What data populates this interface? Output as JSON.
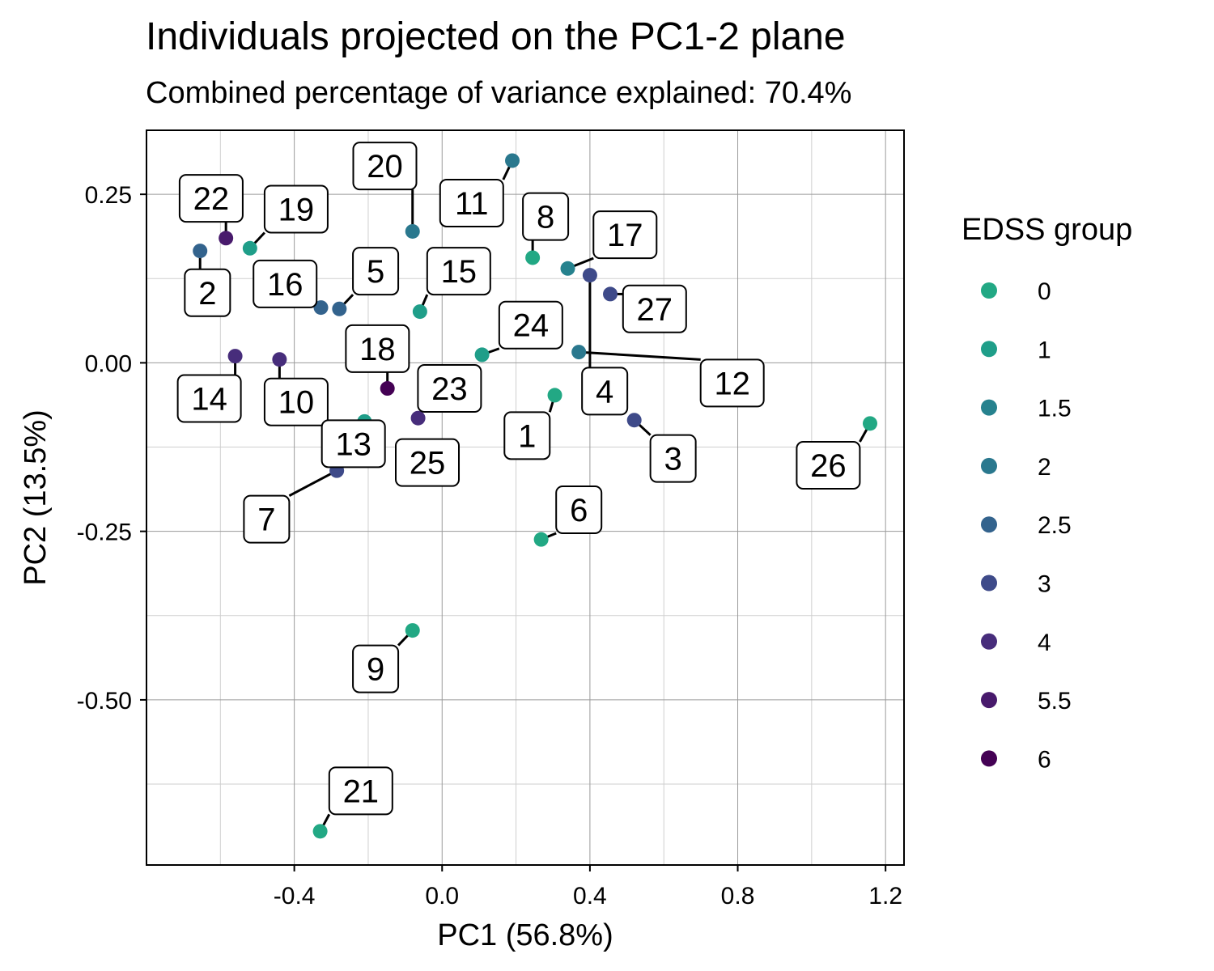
{
  "chart_data": {
    "type": "scatter",
    "title": "Individuals projected on the PC1-2 plane",
    "subtitle": "Combined percentage of variance explained: 70.4%",
    "xlabel": "PC1 (56.8%)",
    "ylabel": "PC2 (13.5%)",
    "xlim": [
      -0.8,
      1.25
    ],
    "ylim": [
      -0.745,
      0.345
    ],
    "xticks": [
      -0.4,
      0.0,
      0.4,
      0.8,
      1.2
    ],
    "xtick_labels": [
      "-0.4",
      "0.0",
      "0.4",
      "0.8",
      "1.2"
    ],
    "yticks": [
      -0.5,
      -0.25,
      0.0,
      0.25
    ],
    "ytick_labels": [
      "-0.50",
      "-0.25",
      "0.00",
      "0.25"
    ],
    "grid": true,
    "legend": {
      "title": "EDSS group",
      "placement": "right",
      "entries": [
        {
          "label": "0",
          "color": "#22a884"
        },
        {
          "label": "1",
          "color": "#1f9e89"
        },
        {
          "label": "1.5",
          "color": "#26828e"
        },
        {
          "label": "2",
          "color": "#2a788e"
        },
        {
          "label": "2.5",
          "color": "#33638d"
        },
        {
          "label": "3",
          "color": "#3e4a89"
        },
        {
          "label": "4",
          "color": "#472d7b"
        },
        {
          "label": "5.5",
          "color": "#481a6c"
        },
        {
          "label": "6",
          "color": "#440154"
        }
      ]
    },
    "points": [
      {
        "id": "1",
        "x": 0.305,
        "y": -0.048,
        "group": "0",
        "lx": 0.23,
        "ly": -0.108
      },
      {
        "id": "2",
        "x": -0.655,
        "y": 0.166,
        "group": "2.5",
        "lx": -0.635,
        "ly": 0.104
      },
      {
        "id": "3",
        "x": 0.52,
        "y": -0.085,
        "group": "3",
        "lx": 0.625,
        "ly": -0.142
      },
      {
        "id": "4",
        "x": 0.4,
        "y": 0.13,
        "group": "3",
        "lx": 0.44,
        "ly": -0.042
      },
      {
        "id": "5",
        "x": -0.278,
        "y": 0.08,
        "group": "2.5",
        "lx": -0.18,
        "ly": 0.136
      },
      {
        "id": "6",
        "x": 0.268,
        "y": -0.262,
        "group": "0",
        "lx": 0.37,
        "ly": -0.218
      },
      {
        "id": "7",
        "x": -0.285,
        "y": -0.16,
        "group": "3",
        "lx": -0.475,
        "ly": -0.232
      },
      {
        "id": "8",
        "x": 0.245,
        "y": 0.156,
        "group": "0",
        "lx": 0.28,
        "ly": 0.217
      },
      {
        "id": "9",
        "x": -0.08,
        "y": -0.397,
        "group": "0",
        "lx": -0.18,
        "ly": -0.454
      },
      {
        "id": "10",
        "x": -0.44,
        "y": 0.005,
        "group": "4",
        "lx": -0.395,
        "ly": -0.058
      },
      {
        "id": "11",
        "x": 0.19,
        "y": 0.3,
        "group": "2",
        "lx": 0.08,
        "ly": 0.237
      },
      {
        "id": "12",
        "x": 0.37,
        "y": 0.016,
        "group": "2",
        "lx": 0.785,
        "ly": -0.03
      },
      {
        "id": "13",
        "x": -0.21,
        "y": -0.087,
        "group": "1",
        "lx": -0.24,
        "ly": -0.12
      },
      {
        "id": "14",
        "x": -0.56,
        "y": 0.01,
        "group": "4",
        "lx": -0.63,
        "ly": -0.053
      },
      {
        "id": "15",
        "x": -0.06,
        "y": 0.076,
        "group": "1",
        "lx": 0.045,
        "ly": 0.136
      },
      {
        "id": "16",
        "x": -0.328,
        "y": 0.082,
        "group": "2.5",
        "lx": -0.425,
        "ly": 0.117
      },
      {
        "id": "17",
        "x": 0.34,
        "y": 0.14,
        "group": "1.5",
        "lx": 0.495,
        "ly": 0.19
      },
      {
        "id": "18",
        "x": -0.148,
        "y": -0.038,
        "group": "6",
        "lx": -0.175,
        "ly": 0.021
      },
      {
        "id": "19",
        "x": -0.52,
        "y": 0.17,
        "group": "1",
        "lx": -0.395,
        "ly": 0.228
      },
      {
        "id": "20",
        "x": -0.08,
        "y": 0.195,
        "group": "2",
        "lx": -0.155,
        "ly": 0.292
      },
      {
        "id": "21",
        "x": -0.33,
        "y": -0.695,
        "group": "0",
        "lx": -0.22,
        "ly": -0.635
      },
      {
        "id": "22",
        "x": -0.585,
        "y": 0.185,
        "group": "5.5",
        "lx": -0.625,
        "ly": 0.244
      },
      {
        "id": "23",
        "x": -0.065,
        "y": -0.082,
        "group": "4",
        "lx": 0.02,
        "ly": -0.038
      },
      {
        "id": "24",
        "x": 0.108,
        "y": 0.012,
        "group": "1",
        "lx": 0.24,
        "ly": 0.056
      },
      {
        "id": "25",
        "x": -0.015,
        "y": -0.14,
        "group": "4",
        "lx": -0.04,
        "ly": -0.148
      },
      {
        "id": "26",
        "x": 1.158,
        "y": -0.09,
        "group": "0",
        "lx": 1.045,
        "ly": -0.152
      },
      {
        "id": "27",
        "x": 0.455,
        "y": 0.102,
        "group": "3",
        "lx": 0.575,
        "ly": 0.08
      }
    ]
  }
}
